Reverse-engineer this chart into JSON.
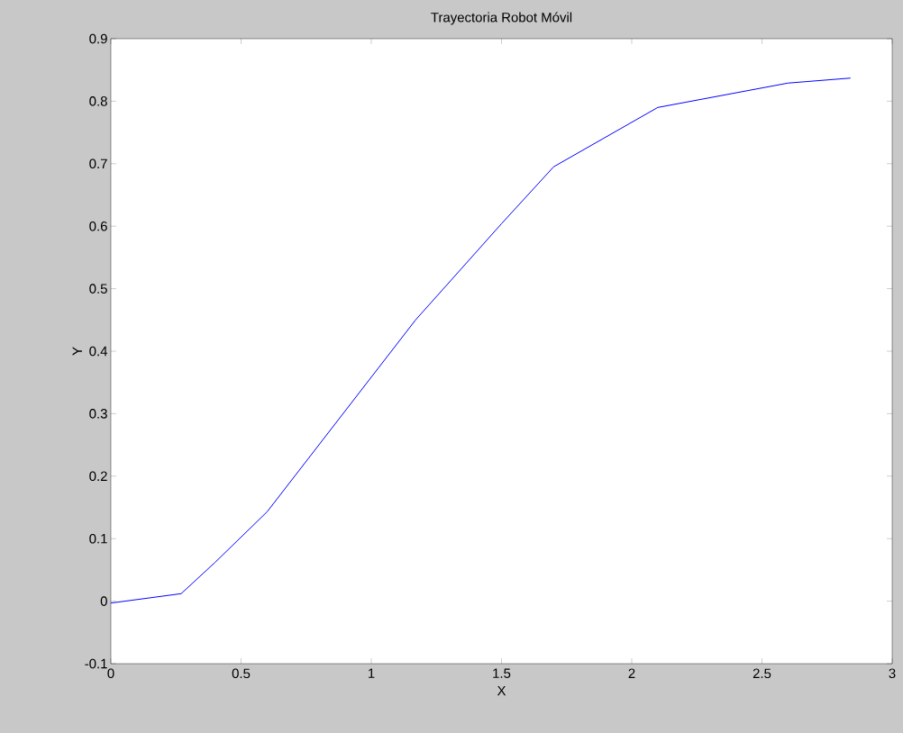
{
  "chart_data": {
    "type": "line",
    "title": "Trayectoria Robot Móvil",
    "xlabel": "X",
    "ylabel": "Y",
    "x": [
      0,
      0.27,
      0.4,
      0.6,
      1.17,
      1.5,
      1.7,
      2.1,
      2.6,
      2.84
    ],
    "series": [
      {
        "color": "#0000ff",
        "values": [
          -0.003,
          0.012,
          0.062,
          0.143,
          0.45,
          0.604,
          0.695,
          0.79,
          0.829,
          0.837
        ]
      }
    ],
    "xlim": [
      0,
      3
    ],
    "ylim": [
      -0.1,
      0.9
    ],
    "xticks": [
      0,
      0.5,
      1,
      1.5,
      2,
      2.5,
      3
    ],
    "yticks": [
      -0.1,
      0,
      0.1,
      0.2,
      0.3,
      0.4,
      0.5,
      0.6,
      0.7,
      0.8,
      0.9
    ]
  }
}
